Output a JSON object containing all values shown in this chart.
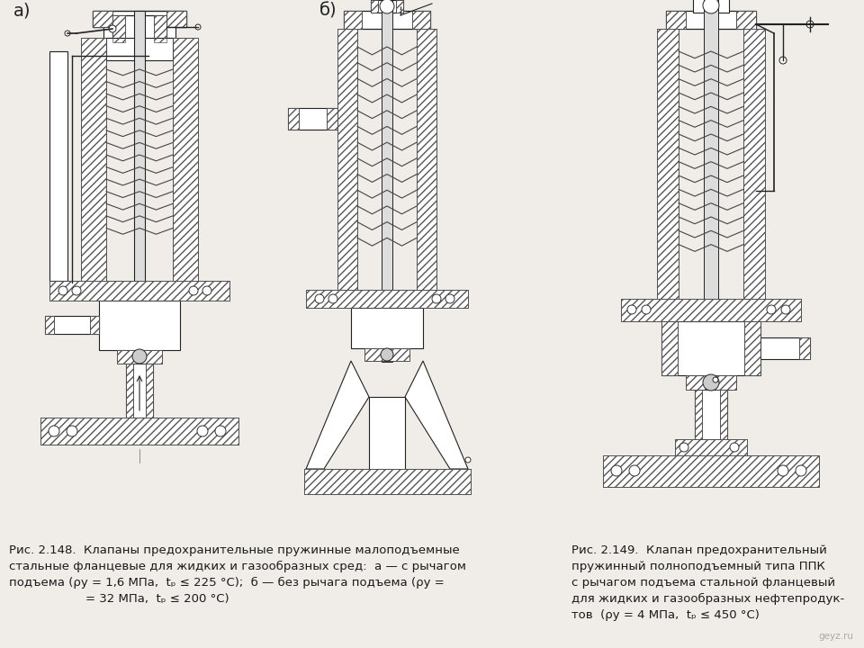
{
  "background_color": "#f0ede8",
  "text_color": "#1a1a1a",
  "label_a": "а)",
  "label_b": "б)",
  "watermark": "geyz.ru",
  "caption_left": "Рис. 2.148.  Клапаны предохранительные пружинные малоподъемные\nстальные фланцевые для жидких и газообразных сред: а — с рычагом\nподъема (ру = 1,6 МПа,  tₚ ≤ 225 °С);  б — без рычага подъема (ру =\n       = 32 МПа,  tₚ ≤ 200 °С)",
  "caption_right": "Рис. 2.149.  Клапан предохранительный\nпружинный полноподъемный типа ППК\nс рычагом подъема стальной фланцевый\nдля жидких и газообразных нефтепродук-\nтов  (ру = 4 МПа,  tₚ ≤ 450 °С)",
  "hatch_color": "#555555",
  "line_color": "#222222",
  "font_size": 9.5
}
